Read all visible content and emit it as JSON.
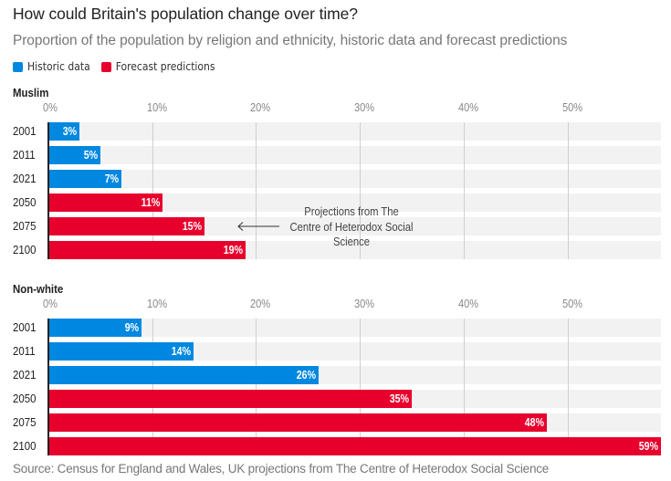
{
  "header": {
    "title": "How could Britain's population change over time?",
    "subtitle": "Proportion of the population by religion and ethnicity, historic data and forecast predictions"
  },
  "legend": [
    {
      "label": "Historic data",
      "color": "#0088e0"
    },
    {
      "label": "Forecast predictions",
      "color": "#e8002d"
    }
  ],
  "colors": {
    "historic": "#0088e0",
    "forecast": "#e8002d",
    "row_background": "#f2f2f2",
    "gridline": "#cfcfcf"
  },
  "chart_data": [
    {
      "type": "bar",
      "orientation": "horizontal",
      "title": "Muslim",
      "categories": [
        "2001",
        "2011",
        "2021",
        "2050",
        "2075",
        "2100"
      ],
      "values": [
        3,
        5,
        7,
        11,
        15,
        19
      ],
      "value_labels": [
        "3%",
        "5%",
        "7%",
        "11%",
        "15%",
        "19%"
      ],
      "kinds": [
        "historic",
        "historic",
        "historic",
        "forecast",
        "forecast",
        "forecast"
      ],
      "xlim": [
        0,
        59
      ],
      "xticks": [
        0,
        10,
        20,
        30,
        40,
        50
      ],
      "xtick_labels": [
        "0%",
        "10%",
        "20%",
        "30%",
        "40%",
        "50%"
      ],
      "grid": true,
      "annotation": {
        "text_lines": [
          "Projections from The",
          "Centre of Heterodox Social",
          "Science"
        ],
        "points_to": "2075"
      }
    },
    {
      "type": "bar",
      "orientation": "horizontal",
      "title": "Non-white",
      "categories": [
        "2001",
        "2011",
        "2021",
        "2050",
        "2075",
        "2100"
      ],
      "values": [
        9,
        14,
        26,
        35,
        48,
        59
      ],
      "value_labels": [
        "9%",
        "14%",
        "26%",
        "35%",
        "48%",
        "59%"
      ],
      "kinds": [
        "historic",
        "historic",
        "historic",
        "forecast",
        "forecast",
        "forecast"
      ],
      "xlim": [
        0,
        59
      ],
      "xticks": [
        0,
        10,
        20,
        30,
        40,
        50
      ],
      "xtick_labels": [
        "0%",
        "10%",
        "20%",
        "30%",
        "40%",
        "50%"
      ],
      "grid": true
    }
  ],
  "footer": {
    "source": "Source: Census for England and Wales, UK projections from The Centre of Heterodox Social Science"
  }
}
